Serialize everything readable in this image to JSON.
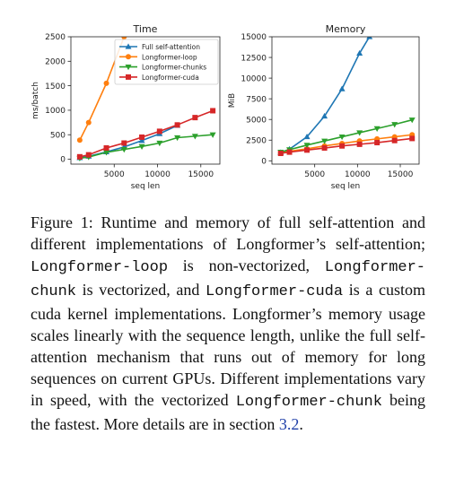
{
  "chart_data": [
    {
      "type": "line",
      "title": "Time",
      "xlabel": "seq len",
      "ylabel": "ms/batch",
      "xlim": [
        0,
        17200
      ],
      "ylim": [
        -100,
        2500
      ],
      "xticks": [
        5000,
        10000,
        15000
      ],
      "yticks": [
        0,
        500,
        1000,
        1500,
        2000,
        2500
      ],
      "xtick_labels": [
        "5000",
        "10000",
        "15000"
      ],
      "ytick_labels": [
        "0",
        "500",
        "1000",
        "1500",
        "2000",
        "2500"
      ],
      "legend_position": "top-right",
      "series": [
        {
          "name": "Full self-attention",
          "color": "#1f77b4",
          "marker": "triangle-up",
          "x": [
            1024,
            2048,
            4096,
            6144,
            8192,
            10240,
            12288
          ],
          "y": [
            30,
            60,
            150,
            250,
            380,
            520,
            690
          ]
        },
        {
          "name": "Longformer-loop",
          "color": "#ff7f0e",
          "marker": "circle",
          "x": [
            1024,
            2048,
            4096,
            6144
          ],
          "y": [
            390,
            750,
            1550,
            2500
          ]
        },
        {
          "name": "Longformer-chunks",
          "color": "#2ca02c",
          "marker": "triangle-down",
          "x": [
            1024,
            2048,
            4096,
            6144,
            8192,
            10240,
            12288,
            14336,
            16384
          ],
          "y": [
            20,
            45,
            140,
            200,
            260,
            330,
            440,
            470,
            500
          ]
        },
        {
          "name": "Longformer-cuda",
          "color": "#d62728",
          "marker": "square",
          "x": [
            1024,
            2048,
            4096,
            6144,
            8192,
            10240,
            12288,
            14336,
            16384
          ],
          "y": [
            50,
            90,
            230,
            330,
            450,
            570,
            700,
            850,
            990
          ]
        }
      ]
    },
    {
      "type": "line",
      "title": "Memory",
      "xlabel": "seq len",
      "ylabel": "MiB",
      "xlim": [
        0,
        17200
      ],
      "ylim": [
        -400,
        15000
      ],
      "xticks": [
        5000,
        10000,
        15000
      ],
      "yticks": [
        0,
        2500,
        5000,
        7500,
        10000,
        12500,
        15000
      ],
      "xtick_labels": [
        "5000",
        "10000",
        "15000"
      ],
      "ytick_labels": [
        "0",
        "2500",
        "5000",
        "7500",
        "10000",
        "12500",
        "15000"
      ],
      "series": [
        {
          "name": "Full self-attention",
          "color": "#1f77b4",
          "marker": "triangle-up",
          "x": [
            1024,
            2048,
            4096,
            6144,
            8192,
            10240,
            11400
          ],
          "y": [
            1000,
            1400,
            2900,
            5400,
            8700,
            13000,
            15000
          ]
        },
        {
          "name": "Longformer-loop",
          "color": "#ff7f0e",
          "marker": "circle",
          "x": [
            1024,
            2048,
            4096,
            6144,
            8192,
            10240,
            12288,
            14336,
            16384
          ],
          "y": [
            950,
            1150,
            1450,
            1800,
            2100,
            2400,
            2650,
            2900,
            3150
          ]
        },
        {
          "name": "Longformer-chunks",
          "color": "#2ca02c",
          "marker": "triangle-down",
          "x": [
            1024,
            2048,
            4096,
            6144,
            8192,
            10240,
            12288,
            14336,
            16384
          ],
          "y": [
            1050,
            1350,
            1900,
            2400,
            2900,
            3400,
            3900,
            4400,
            4950
          ]
        },
        {
          "name": "Longformer-cuda",
          "color": "#d62728",
          "marker": "square",
          "x": [
            1024,
            2048,
            4096,
            6144,
            8192,
            10240,
            12288,
            14336,
            16384
          ],
          "y": [
            900,
            1050,
            1300,
            1550,
            1800,
            2000,
            2200,
            2450,
            2700
          ]
        }
      ]
    }
  ],
  "caption": {
    "p1": "Figure 1:   Runtime and memory of full self-attention and different implementations of Longformer’s self-attention; ",
    "code1": "Longformer-loop",
    "p2": " is non-vectorized, ",
    "code2": "Longformer-chunk",
    "p3": " is vectorized, and ",
    "code3": "Longformer-cuda",
    "p4": " is a custom cuda kernel implementations.  Longformer’s memory usage scales linearly with the sequence length, unlike the full self-attention mechanism that runs out of memory for long sequences on current GPUs.   Different implementations vary in speed, with the vectorized ",
    "code4": "Longformer-chunk",
    "p5": " being the fastest. More details are in section ",
    "ref": "3.2",
    "p6": "."
  }
}
